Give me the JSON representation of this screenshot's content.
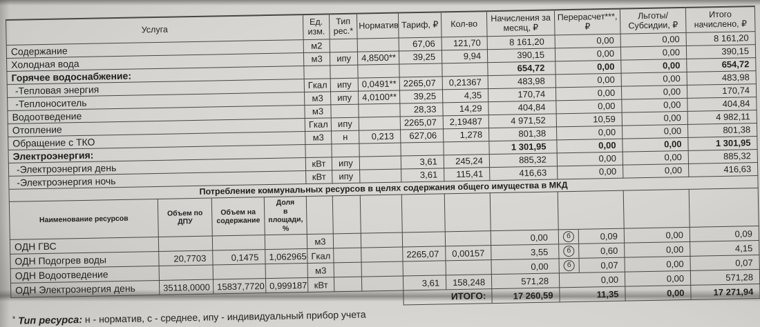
{
  "main_table": {
    "headers": [
      "Услуга",
      "Ед.\nизм.",
      "Тип\nрес.*",
      "Норматив",
      "Тариф, ₽",
      "Кол-во",
      "Начисления за\nмесяц, ₽",
      "Перерасчет***, ₽",
      "Льготы/\nСубсидии, ₽",
      "Итого\nначислено, ₽"
    ],
    "rows": [
      {
        "service": "Содержание",
        "unit": "м2",
        "res_type": "",
        "normative": "",
        "tariff": "67,06",
        "qty": "121,70",
        "accrued": "8 161,20",
        "recalc": "0,00",
        "benefits": "0,00",
        "total": "8 161,20",
        "bold": false
      },
      {
        "service": "Холодная вода",
        "unit": "м3",
        "res_type": "ипу",
        "normative": "4,8500**",
        "tariff": "39,25",
        "qty": "9,94",
        "accrued": "390,15",
        "recalc": "0,00",
        "benefits": "0,00",
        "total": "390,15",
        "bold": false
      },
      {
        "service": "Горячее водоснабжение:",
        "unit": "",
        "res_type": "",
        "normative": "",
        "tariff": "",
        "qty": "",
        "accrued": "654,72",
        "recalc": "0,00",
        "benefits": "0,00",
        "total": "654,72",
        "bold": true
      },
      {
        "service": "-Тепловая энергия",
        "unit": "Гкал",
        "res_type": "ипу",
        "normative": "0,0491**",
        "tariff": "2265,07",
        "qty": "0,21367",
        "accrued": "483,98",
        "recalc": "0,00",
        "benefits": "0,00",
        "total": "483,98",
        "bold": false
      },
      {
        "service": "-Теплоноситель",
        "unit": "м3",
        "res_type": "ипу",
        "normative": "4,0100**",
        "tariff": "39,25",
        "qty": "4,35",
        "accrued": "170,74",
        "recalc": "0,00",
        "benefits": "0,00",
        "total": "170,74",
        "bold": false
      },
      {
        "service": "Водоотведение",
        "unit": "м3",
        "res_type": "",
        "normative": "",
        "tariff": "28,33",
        "qty": "14,29",
        "accrued": "404,84",
        "recalc": "0,00",
        "benefits": "0,00",
        "total": "404,84",
        "bold": false
      },
      {
        "service": "Отопление",
        "unit": "Гкал",
        "res_type": "ипу",
        "normative": "",
        "tariff": "2265,07",
        "qty": "2,19487",
        "accrued": "4 971,52",
        "recalc": "10,59",
        "benefits": "0,00",
        "total": "4 982,11",
        "bold": false
      },
      {
        "service": "Обращение с ТКО",
        "unit": "м3",
        "res_type": "н",
        "normative": "0,213",
        "tariff": "627,06",
        "qty": "1,278",
        "accrued": "801,38",
        "recalc": "0,00",
        "benefits": "0,00",
        "total": "801,38",
        "bold": false
      },
      {
        "service": "Электроэнергия:",
        "unit": "",
        "res_type": "",
        "normative": "",
        "tariff": "",
        "qty": "",
        "accrued": "1 301,95",
        "recalc": "0,00",
        "benefits": "0,00",
        "total": "1 301,95",
        "bold": true
      },
      {
        "service": "-Электроэнергия день",
        "unit": "кВт",
        "res_type": "ипу",
        "normative": "",
        "tariff": "3,61",
        "qty": "245,24",
        "accrued": "885,32",
        "recalc": "0,00",
        "benefits": "0,00",
        "total": "885,32",
        "bold": false
      },
      {
        "service": "-Электроэнергия ночь",
        "unit": "кВт",
        "res_type": "ипу",
        "normative": "",
        "tariff": "3,61",
        "qty": "115,41",
        "accrued": "416,63",
        "recalc": "0,00",
        "benefits": "0,00",
        "total": "416,63",
        "bold": false
      }
    ]
  },
  "odn_section": {
    "title": "Потребление коммунальных ресурсов в целях содержания общего имущества в МКД",
    "headers": [
      "Наименование ресурсов",
      "Объем по\nДПУ",
      "Объем на\nсодержание",
      "Доля\nв площади, %"
    ],
    "rows": [
      {
        "name": "ОДН ГВС",
        "vol_dpu": "",
        "vol_maint": "",
        "share": "",
        "unit": "м3",
        "res_type": "",
        "normative": "",
        "tariff": "",
        "qty": "",
        "accrued": "0,00",
        "note": "б",
        "recalc": "0,09",
        "benefits": "0,00",
        "total": "0,09"
      },
      {
        "name": "ОДН Подогрев воды",
        "vol_dpu": "20,7703",
        "vol_maint": "0,1475",
        "share": "1,062965648",
        "unit": "Гкал",
        "res_type": "",
        "normative": "",
        "tariff": "2265,07",
        "qty": "0,00157",
        "accrued": "3,55",
        "note": "б",
        "recalc": "0,60",
        "benefits": "0,00",
        "total": "4,15"
      },
      {
        "name": "ОДН Водоотведение",
        "vol_dpu": "",
        "vol_maint": "",
        "share": "",
        "unit": "м3",
        "res_type": "",
        "normative": "",
        "tariff": "",
        "qty": "",
        "accrued": "0,00",
        "note": "б",
        "recalc": "0,07",
        "benefits": "0,00",
        "total": "0,07"
      },
      {
        "name": "ОДН Электроэнергия день",
        "vol_dpu": "35118,0000",
        "vol_maint": "15837,7720",
        "share": "0,999187185",
        "unit": "кВт",
        "res_type": "",
        "normative": "",
        "tariff": "3,61",
        "qty": "158,248",
        "accrued": "571,28",
        "note": "",
        "recalc": "0,00",
        "benefits": "0,00",
        "total": "571,28"
      }
    ],
    "total_row": {
      "label": "ИТОГО:",
      "accrued": "17 260,59",
      "recalc": "11,35",
      "benefits": "0,00",
      "total": "17 271,94"
    }
  },
  "footnote": {
    "marker": "*",
    "label": "Тип ресурса:",
    "text": "н - норматив, с - среднее, ипу - индивидуальный прибор учета"
  }
}
